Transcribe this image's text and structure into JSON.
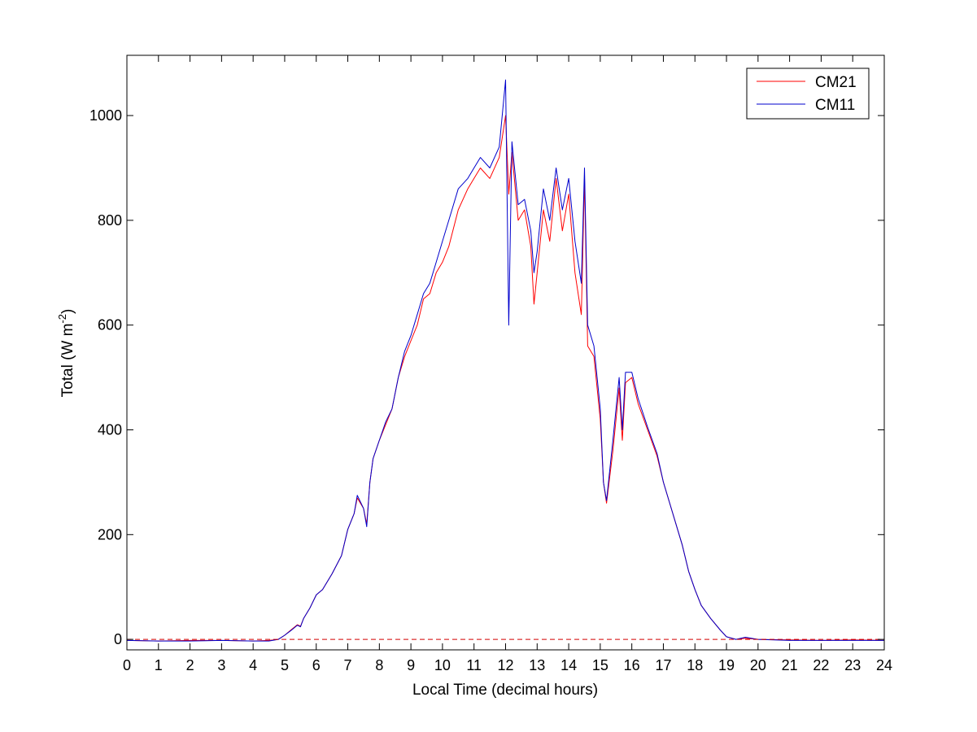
{
  "chart_data": {
    "type": "line",
    "title": "",
    "xlabel": "Local Time (decimal hours)",
    "ylabel_main": "Total (W m",
    "ylabel_sup": "-2",
    "ylabel_close": ")",
    "xlim": [
      0,
      24
    ],
    "ylim": [
      -20,
      1115
    ],
    "xticks": [
      "0",
      "1",
      "2",
      "3",
      "4",
      "5",
      "6",
      "7",
      "8",
      "9",
      "10",
      "11",
      "12",
      "13",
      "14",
      "15",
      "16",
      "17",
      "18",
      "19",
      "20",
      "21",
      "22",
      "23",
      "24"
    ],
    "yticks": [
      "0",
      "200",
      "400",
      "600",
      "800",
      "1000"
    ],
    "grid": false,
    "legend_position": "top-right",
    "zero_line": {
      "y": 0,
      "style": "dashed",
      "color": "#d40000"
    },
    "series": [
      {
        "name": "CM21",
        "color": "#ff0000",
        "x": [
          0,
          1,
          2,
          3,
          4,
          4.5,
          4.8,
          5.0,
          5.2,
          5.4,
          5.5,
          5.6,
          5.8,
          6.0,
          6.2,
          6.5,
          6.8,
          7.0,
          7.2,
          7.3,
          7.5,
          7.6,
          7.7,
          7.8,
          8.0,
          8.2,
          8.4,
          8.6,
          8.8,
          9.0,
          9.2,
          9.4,
          9.6,
          9.8,
          10.0,
          10.2,
          10.5,
          10.8,
          11.0,
          11.2,
          11.5,
          11.8,
          12.0,
          12.1,
          12.2,
          12.4,
          12.6,
          12.8,
          12.9,
          13.0,
          13.2,
          13.4,
          13.6,
          13.8,
          14.0,
          14.2,
          14.4,
          14.5,
          14.6,
          14.8,
          15.0,
          15.1,
          15.2,
          15.4,
          15.6,
          15.7,
          15.8,
          16.0,
          16.2,
          16.5,
          16.8,
          17.0,
          17.3,
          17.6,
          17.8,
          18.0,
          18.2,
          18.5,
          18.8,
          19.0,
          19.3,
          19.6,
          20,
          21,
          22,
          23,
          24
        ],
        "y": [
          -2,
          -3,
          -2,
          -2,
          -3,
          -2,
          0,
          8,
          18,
          28,
          25,
          40,
          60,
          85,
          95,
          125,
          160,
          210,
          240,
          270,
          250,
          220,
          300,
          345,
          380,
          410,
          440,
          500,
          540,
          570,
          600,
          650,
          660,
          700,
          720,
          750,
          820,
          860,
          880,
          900,
          880,
          920,
          1000,
          850,
          930,
          800,
          820,
          750,
          640,
          700,
          820,
          760,
          880,
          780,
          850,
          700,
          620,
          880,
          560,
          540,
          420,
          300,
          260,
          360,
          480,
          380,
          490,
          500,
          450,
          400,
          350,
          300,
          240,
          180,
          130,
          95,
          65,
          40,
          18,
          5,
          0,
          2,
          0,
          -1,
          -2,
          -1,
          -2
        ]
      },
      {
        "name": "CM11",
        "color": "#0000cc",
        "x": [
          0,
          1,
          2,
          3,
          4,
          4.5,
          4.8,
          5.0,
          5.2,
          5.4,
          5.5,
          5.6,
          5.8,
          6.0,
          6.2,
          6.5,
          6.8,
          7.0,
          7.2,
          7.3,
          7.5,
          7.6,
          7.7,
          7.8,
          8.0,
          8.2,
          8.4,
          8.6,
          8.8,
          9.0,
          9.2,
          9.4,
          9.6,
          9.8,
          10.0,
          10.2,
          10.5,
          10.8,
          11.0,
          11.2,
          11.5,
          11.8,
          12.0,
          12.1,
          12.2,
          12.4,
          12.6,
          12.8,
          12.9,
          13.0,
          13.2,
          13.4,
          13.6,
          13.8,
          14.0,
          14.2,
          14.4,
          14.5,
          14.6,
          14.8,
          15.0,
          15.1,
          15.2,
          15.4,
          15.6,
          15.7,
          15.8,
          16.0,
          16.2,
          16.5,
          16.8,
          17.0,
          17.3,
          17.6,
          17.8,
          18.0,
          18.2,
          18.5,
          18.8,
          19.0,
          19.3,
          19.6,
          20,
          21,
          22,
          23,
          24
        ],
        "y": [
          -2,
          -3,
          -3,
          -2,
          -3,
          -3,
          0,
          8,
          17,
          27,
          24,
          40,
          60,
          85,
          95,
          125,
          160,
          210,
          240,
          275,
          250,
          215,
          300,
          345,
          380,
          415,
          440,
          500,
          550,
          580,
          620,
          660,
          680,
          720,
          760,
          800,
          860,
          880,
          900,
          920,
          900,
          940,
          1068,
          600,
          950,
          830,
          840,
          780,
          700,
          740,
          860,
          800,
          900,
          820,
          880,
          760,
          680,
          900,
          600,
          560,
          440,
          300,
          265,
          380,
          500,
          400,
          510,
          510,
          460,
          405,
          355,
          300,
          240,
          180,
          130,
          95,
          65,
          40,
          18,
          5,
          0,
          4,
          0,
          -2,
          -2,
          -2,
          -2
        ]
      }
    ]
  }
}
